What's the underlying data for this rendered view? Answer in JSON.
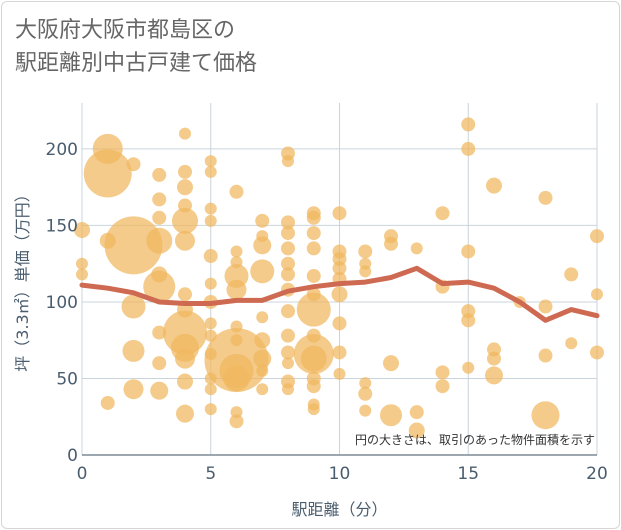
{
  "title_lines": [
    "大阪府大阪市都島区の",
    "駅距離別中古戸建て価格"
  ],
  "colors": {
    "bubble": "#f0b75e",
    "trend": "#cd6a51",
    "grid": "#c9d4dc",
    "text": "#4a5d6e"
  },
  "chart_data": {
    "type": "scatter",
    "title": "大阪府大阪市都島区の駅距離別中古戸建て価格",
    "xlabel": "駅距離（分）",
    "ylabel": "坪（3.3㎡）単価（万円）",
    "xlim": [
      0,
      20
    ],
    "ylim": [
      0,
      230
    ],
    "xticks": [
      0,
      5,
      10,
      15,
      20
    ],
    "yticks": [
      0,
      50,
      100,
      150,
      200
    ],
    "grid": true,
    "note": "円の大きさは、取引のあった物件面積を示す",
    "bubbles": [
      {
        "x": 1,
        "y": 184,
        "r": 24
      },
      {
        "x": 1,
        "y": 200,
        "r": 15
      },
      {
        "x": 1,
        "y": 140,
        "r": 8
      },
      {
        "x": 1,
        "y": 34,
        "r": 7
      },
      {
        "x": 0,
        "y": 147,
        "r": 8
      },
      {
        "x": 0,
        "y": 125,
        "r": 6
      },
      {
        "x": 0,
        "y": 118,
        "r": 6
      },
      {
        "x": 2,
        "y": 137,
        "r": 29
      },
      {
        "x": 2,
        "y": 190,
        "r": 7
      },
      {
        "x": 2,
        "y": 97,
        "r": 12
      },
      {
        "x": 2,
        "y": 68,
        "r": 11
      },
      {
        "x": 2,
        "y": 43,
        "r": 10
      },
      {
        "x": 3,
        "y": 183,
        "r": 7
      },
      {
        "x": 3,
        "y": 167,
        "r": 7
      },
      {
        "x": 3,
        "y": 155,
        "r": 7
      },
      {
        "x": 3,
        "y": 140,
        "r": 13
      },
      {
        "x": 3,
        "y": 118,
        "r": 8
      },
      {
        "x": 3,
        "y": 110,
        "r": 16
      },
      {
        "x": 3,
        "y": 80,
        "r": 7
      },
      {
        "x": 3,
        "y": 60,
        "r": 7
      },
      {
        "x": 3,
        "y": 42,
        "r": 9
      },
      {
        "x": 4,
        "y": 210,
        "r": 6
      },
      {
        "x": 4,
        "y": 185,
        "r": 7
      },
      {
        "x": 4,
        "y": 175,
        "r": 8
      },
      {
        "x": 4,
        "y": 163,
        "r": 7
      },
      {
        "x": 4,
        "y": 153,
        "r": 13
      },
      {
        "x": 4,
        "y": 140,
        "r": 10
      },
      {
        "x": 4,
        "y": 105,
        "r": 7
      },
      {
        "x": 4,
        "y": 95,
        "r": 8
      },
      {
        "x": 4,
        "y": 80,
        "r": 22
      },
      {
        "x": 4,
        "y": 70,
        "r": 14
      },
      {
        "x": 4,
        "y": 63,
        "r": 10
      },
      {
        "x": 4,
        "y": 48,
        "r": 8
      },
      {
        "x": 4,
        "y": 27,
        "r": 9
      },
      {
        "x": 5,
        "y": 192,
        "r": 6
      },
      {
        "x": 5,
        "y": 185,
        "r": 6
      },
      {
        "x": 5,
        "y": 161,
        "r": 6
      },
      {
        "x": 5,
        "y": 153,
        "r": 6
      },
      {
        "x": 5,
        "y": 130,
        "r": 7
      },
      {
        "x": 5,
        "y": 112,
        "r": 6
      },
      {
        "x": 5,
        "y": 100,
        "r": 7
      },
      {
        "x": 5,
        "y": 86,
        "r": 6
      },
      {
        "x": 5,
        "y": 78,
        "r": 6
      },
      {
        "x": 5,
        "y": 66,
        "r": 6
      },
      {
        "x": 5,
        "y": 50,
        "r": 6
      },
      {
        "x": 5,
        "y": 43,
        "r": 6
      },
      {
        "x": 5,
        "y": 30,
        "r": 6
      },
      {
        "x": 6,
        "y": 172,
        "r": 7
      },
      {
        "x": 6,
        "y": 133,
        "r": 6
      },
      {
        "x": 6,
        "y": 126,
        "r": 6
      },
      {
        "x": 6,
        "y": 117,
        "r": 12
      },
      {
        "x": 6,
        "y": 108,
        "r": 10
      },
      {
        "x": 6,
        "y": 84,
        "r": 6
      },
      {
        "x": 6,
        "y": 75,
        "r": 6
      },
      {
        "x": 6,
        "y": 62,
        "r": 32
      },
      {
        "x": 6,
        "y": 55,
        "r": 17
      },
      {
        "x": 6,
        "y": 50,
        "r": 13
      },
      {
        "x": 6,
        "y": 28,
        "r": 6
      },
      {
        "x": 6,
        "y": 22,
        "r": 7
      },
      {
        "x": 7,
        "y": 153,
        "r": 7
      },
      {
        "x": 7,
        "y": 143,
        "r": 6
      },
      {
        "x": 7,
        "y": 137,
        "r": 9
      },
      {
        "x": 7,
        "y": 120,
        "r": 12
      },
      {
        "x": 7,
        "y": 90,
        "r": 6
      },
      {
        "x": 7,
        "y": 75,
        "r": 8
      },
      {
        "x": 7,
        "y": 63,
        "r": 9
      },
      {
        "x": 7,
        "y": 55,
        "r": 6
      },
      {
        "x": 7,
        "y": 43,
        "r": 6
      },
      {
        "x": 8,
        "y": 197,
        "r": 7
      },
      {
        "x": 8,
        "y": 192,
        "r": 6
      },
      {
        "x": 8,
        "y": 152,
        "r": 7
      },
      {
        "x": 8,
        "y": 145,
        "r": 7
      },
      {
        "x": 8,
        "y": 135,
        "r": 7
      },
      {
        "x": 8,
        "y": 125,
        "r": 7
      },
      {
        "x": 8,
        "y": 118,
        "r": 7
      },
      {
        "x": 8,
        "y": 108,
        "r": 7
      },
      {
        "x": 8,
        "y": 94,
        "r": 7
      },
      {
        "x": 8,
        "y": 78,
        "r": 7
      },
      {
        "x": 8,
        "y": 67,
        "r": 7
      },
      {
        "x": 8,
        "y": 60,
        "r": 6
      },
      {
        "x": 8,
        "y": 48,
        "r": 7
      },
      {
        "x": 8,
        "y": 43,
        "r": 6
      },
      {
        "x": 9,
        "y": 158,
        "r": 7
      },
      {
        "x": 9,
        "y": 155,
        "r": 7
      },
      {
        "x": 9,
        "y": 145,
        "r": 7
      },
      {
        "x": 9,
        "y": 135,
        "r": 7
      },
      {
        "x": 9,
        "y": 117,
        "r": 7
      },
      {
        "x": 9,
        "y": 105,
        "r": 7
      },
      {
        "x": 9,
        "y": 95,
        "r": 17
      },
      {
        "x": 9,
        "y": 78,
        "r": 7
      },
      {
        "x": 9,
        "y": 66,
        "r": 20
      },
      {
        "x": 9,
        "y": 63,
        "r": 13
      },
      {
        "x": 9,
        "y": 50,
        "r": 7
      },
      {
        "x": 9,
        "y": 45,
        "r": 7
      },
      {
        "x": 9,
        "y": 33,
        "r": 6
      },
      {
        "x": 9,
        "y": 30,
        "r": 6
      },
      {
        "x": 10,
        "y": 158,
        "r": 7
      },
      {
        "x": 10,
        "y": 133,
        "r": 7
      },
      {
        "x": 10,
        "y": 128,
        "r": 7
      },
      {
        "x": 10,
        "y": 122,
        "r": 7
      },
      {
        "x": 10,
        "y": 115,
        "r": 7
      },
      {
        "x": 10,
        "y": 105,
        "r": 8
      },
      {
        "x": 10,
        "y": 86,
        "r": 7
      },
      {
        "x": 10,
        "y": 67,
        "r": 7
      },
      {
        "x": 10,
        "y": 53,
        "r": 6
      },
      {
        "x": 11,
        "y": 133,
        "r": 7
      },
      {
        "x": 11,
        "y": 125,
        "r": 6
      },
      {
        "x": 11,
        "y": 120,
        "r": 6
      },
      {
        "x": 11,
        "y": 47,
        "r": 6
      },
      {
        "x": 11,
        "y": 40,
        "r": 7
      },
      {
        "x": 11,
        "y": 29,
        "r": 6
      },
      {
        "x": 12,
        "y": 143,
        "r": 7
      },
      {
        "x": 12,
        "y": 138,
        "r": 7
      },
      {
        "x": 12,
        "y": 60,
        "r": 8
      },
      {
        "x": 12,
        "y": 26,
        "r": 11
      },
      {
        "x": 13,
        "y": 135,
        "r": 6
      },
      {
        "x": 13,
        "y": 28,
        "r": 7
      },
      {
        "x": 13,
        "y": 16,
        "r": 8
      },
      {
        "x": 14,
        "y": 158,
        "r": 7
      },
      {
        "x": 14,
        "y": 110,
        "r": 7
      },
      {
        "x": 14,
        "y": 54,
        "r": 7
      },
      {
        "x": 14,
        "y": 45,
        "r": 7
      },
      {
        "x": 15,
        "y": 216,
        "r": 7
      },
      {
        "x": 15,
        "y": 200,
        "r": 7
      },
      {
        "x": 15,
        "y": 133,
        "r": 7
      },
      {
        "x": 15,
        "y": 94,
        "r": 7
      },
      {
        "x": 15,
        "y": 88,
        "r": 7
      },
      {
        "x": 15,
        "y": 57,
        "r": 6
      },
      {
        "x": 16,
        "y": 176,
        "r": 8
      },
      {
        "x": 16,
        "y": 69,
        "r": 7
      },
      {
        "x": 16,
        "y": 63,
        "r": 7
      },
      {
        "x": 16,
        "y": 52,
        "r": 9
      },
      {
        "x": 17,
        "y": 100,
        "r": 6
      },
      {
        "x": 18,
        "y": 168,
        "r": 7
      },
      {
        "x": 18,
        "y": 97,
        "r": 7
      },
      {
        "x": 18,
        "y": 65,
        "r": 7
      },
      {
        "x": 18,
        "y": 26,
        "r": 14
      },
      {
        "x": 19,
        "y": 118,
        "r": 7
      },
      {
        "x": 19,
        "y": 73,
        "r": 6
      },
      {
        "x": 20,
        "y": 143,
        "r": 7
      },
      {
        "x": 20,
        "y": 105,
        "r": 6
      },
      {
        "x": 20,
        "y": 67,
        "r": 7
      }
    ],
    "trend": {
      "name": "",
      "x": [
        0,
        1,
        2,
        3,
        4,
        5,
        6,
        7,
        8,
        9,
        10,
        11,
        12,
        13,
        14,
        15,
        16,
        17,
        18,
        19,
        20
      ],
      "y": [
        111,
        109,
        106,
        100,
        99,
        99,
        101,
        101,
        107,
        110,
        112,
        113,
        116,
        122,
        112,
        113,
        109,
        100,
        88,
        95,
        91
      ]
    }
  }
}
